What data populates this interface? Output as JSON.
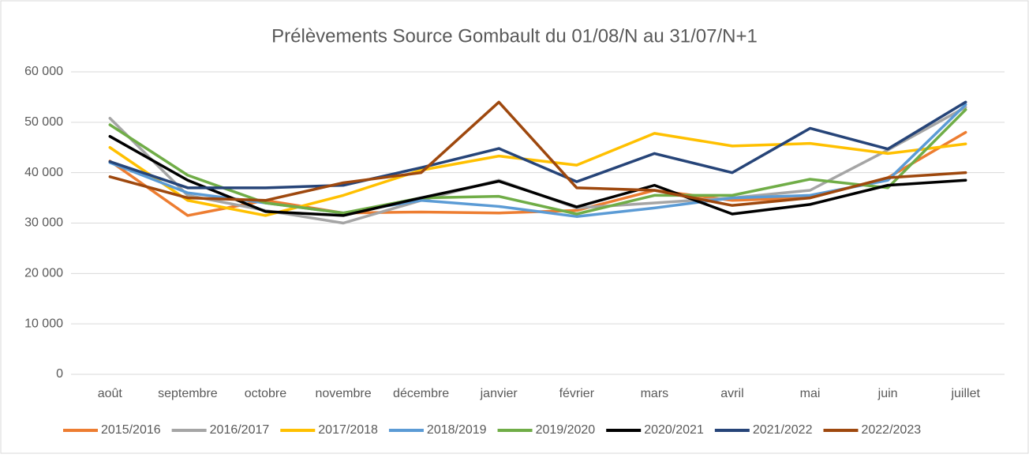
{
  "chart_data": {
    "type": "line",
    "title": "Prélèvements Source Gombault du 01/08/N au 31/07/N+1",
    "categories": [
      "août",
      "septembre",
      "octobre",
      "novembre",
      "décembre",
      "janvier",
      "février",
      "mars",
      "avril",
      "mai",
      "juin",
      "juillet"
    ],
    "series": [
      {
        "name": "2015/2016",
        "color": "#ed7d31",
        "values": [
          42300,
          31500,
          34500,
          32000,
          32200,
          32000,
          32500,
          36500,
          34500,
          35000,
          39000,
          48000
        ]
      },
      {
        "name": "2016/2017",
        "color": "#a5a5a5",
        "values": [
          50800,
          35500,
          32500,
          30000,
          34500,
          38500,
          33000,
          34000,
          35000,
          36500,
          44500,
          53000
        ]
      },
      {
        "name": "2017/2018",
        "color": "#ffc000",
        "values": [
          45000,
          34500,
          31500,
          35500,
          40500,
          43300,
          41500,
          47800,
          45300,
          45800,
          43800,
          45700
        ]
      },
      {
        "name": "2018/2019",
        "color": "#5b9bd5",
        "values": [
          42000,
          36000,
          34000,
          32000,
          34500,
          33300,
          31300,
          33000,
          35000,
          35500,
          38500,
          53500
        ]
      },
      {
        "name": "2019/2020",
        "color": "#70ad47",
        "values": [
          49500,
          39500,
          34000,
          32000,
          35000,
          35300,
          31800,
          35500,
          35500,
          38700,
          37000,
          52500
        ]
      },
      {
        "name": "2020/2021",
        "color": "#000000",
        "values": [
          47200,
          38500,
          32300,
          31500,
          35000,
          38300,
          33200,
          37500,
          31800,
          33700,
          37500,
          38500
        ]
      },
      {
        "name": "2021/2022",
        "color": "#264478",
        "values": [
          42200,
          37000,
          37000,
          37500,
          41000,
          44800,
          38200,
          43800,
          40000,
          48800,
          44700,
          54000
        ]
      },
      {
        "name": "2022/2023",
        "color": "#9e480e",
        "values": [
          39200,
          35000,
          34500,
          38000,
          40000,
          54000,
          37000,
          36500,
          33500,
          35000,
          39000,
          40000
        ]
      }
    ],
    "ylim": [
      0,
      60000
    ],
    "yticks": [
      0,
      {
        "value": 10000,
        "label": "10 000"
      },
      {
        "value": 20000,
        "label": "20 000"
      },
      {
        "value": 30000,
        "label": "30 000"
      },
      {
        "value": 40000,
        "label": "40 000"
      },
      {
        "value": 50000,
        "label": "50 000"
      },
      {
        "value": 60000,
        "label": "60 000"
      }
    ],
    "grid": true,
    "legend": "bottom"
  }
}
